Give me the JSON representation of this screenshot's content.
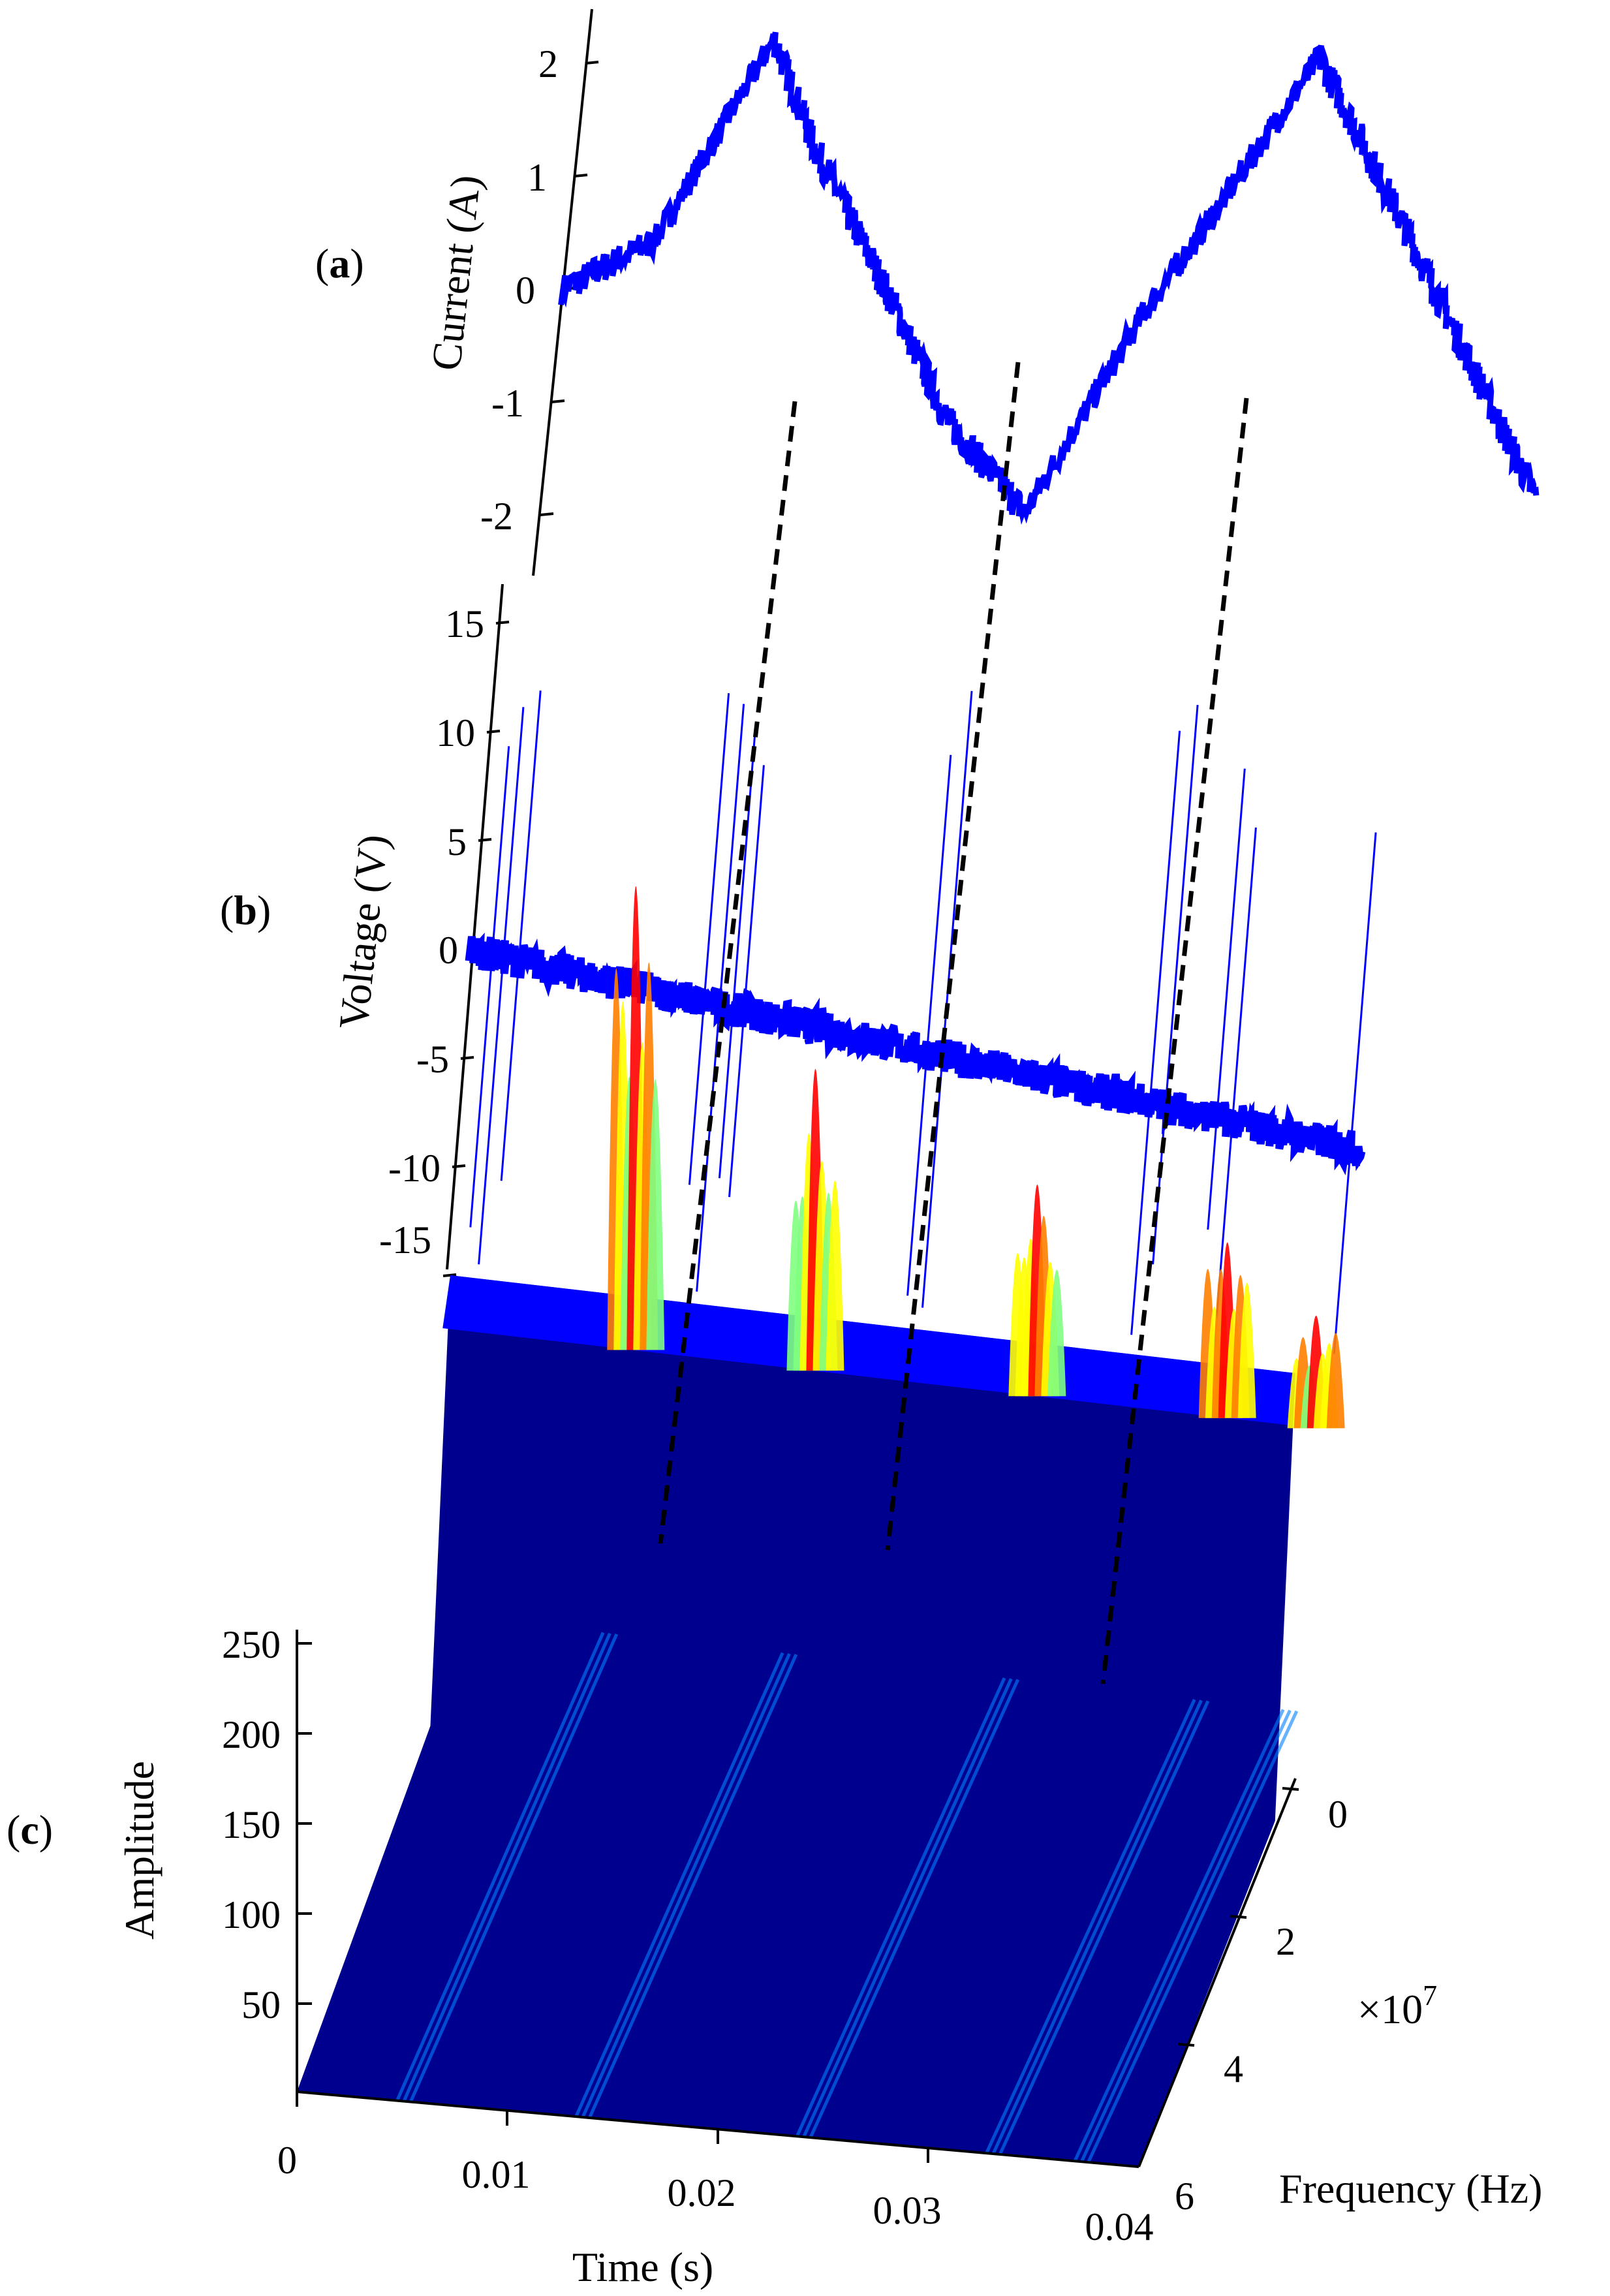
{
  "panels": {
    "a": "a",
    "b": "b",
    "c": "c"
  },
  "colors": {
    "signal": "#0000ff",
    "connector": "#000000",
    "surface_base": "#00008f",
    "colormap": [
      "#00008f",
      "#0000ff",
      "#0080ff",
      "#00ffff",
      "#80ff80",
      "#ffff00",
      "#ff8000",
      "#ff0000"
    ]
  },
  "chart_data": [
    {
      "id": "a",
      "type": "line",
      "ylabel": "Current (A)",
      "yticks": [
        "2",
        "1",
        "0",
        "-1",
        "-2"
      ],
      "ylim": [
        -2.5,
        2.5
      ],
      "xlim": [
        0,
        0.04
      ],
      "series": [
        {
          "x": [
            0,
            0.0035,
            0.0075,
            0.0095,
            0.0135,
            0.016,
            0.0195,
            0.0235,
            0.0255,
            0.0295,
            0.0335,
            0.04
          ],
          "y": [
            0,
            0.4,
            2.15,
            1.2,
            -0.3,
            -1.3,
            -2.15,
            -0.4,
            0.3,
            1.8,
            0.3,
            -2.2
          ]
        }
      ]
    },
    {
      "id": "b",
      "type": "line",
      "ylabel": "Voltage (V)",
      "yticks": [
        "15",
        "10",
        "5",
        "0",
        "-5",
        "-10",
        "-15"
      ],
      "ylim": [
        -16,
        16
      ],
      "xlim": [
        0,
        0.04
      ],
      "baseline": {
        "x": [
          0,
          0.04
        ],
        "y": [
          0,
          -5
        ]
      },
      "spike_times": [
        0.001,
        0.0015,
        0.0022,
        0.0105,
        0.0112,
        0.0118,
        0.0123,
        0.0205,
        0.0212,
        0.0305,
        0.0312,
        0.0335,
        0.0342,
        0.0395
      ]
    },
    {
      "id": "c",
      "type": "surface",
      "zlabel": "Amplitude",
      "xlabel": "Time (s)",
      "ylabel": "Frequency (Hz)",
      "y_multiplier": "×10",
      "y_exponent": "7",
      "zticks": [
        "250",
        "200",
        "150",
        "100",
        "50"
      ],
      "xticks": [
        "0",
        "0.01",
        "0.02",
        "0.03",
        "0.04"
      ],
      "yticks": [
        "0",
        "2",
        "4",
        "6"
      ],
      "zlim": [
        0,
        260
      ],
      "xlim": [
        0,
        0.04
      ],
      "ylim": [
        0,
        6
      ],
      "plateau_amplitude": 225,
      "peaks": [
        {
          "t": 0.009,
          "amplitude": 460
        },
        {
          "t": 0.0175,
          "amplitude": 370
        },
        {
          "t": 0.028,
          "amplitude": 320
        },
        {
          "t": 0.037,
          "amplitude": 300
        },
        {
          "t": 0.046,
          "amplitude": 265
        }
      ]
    }
  ]
}
